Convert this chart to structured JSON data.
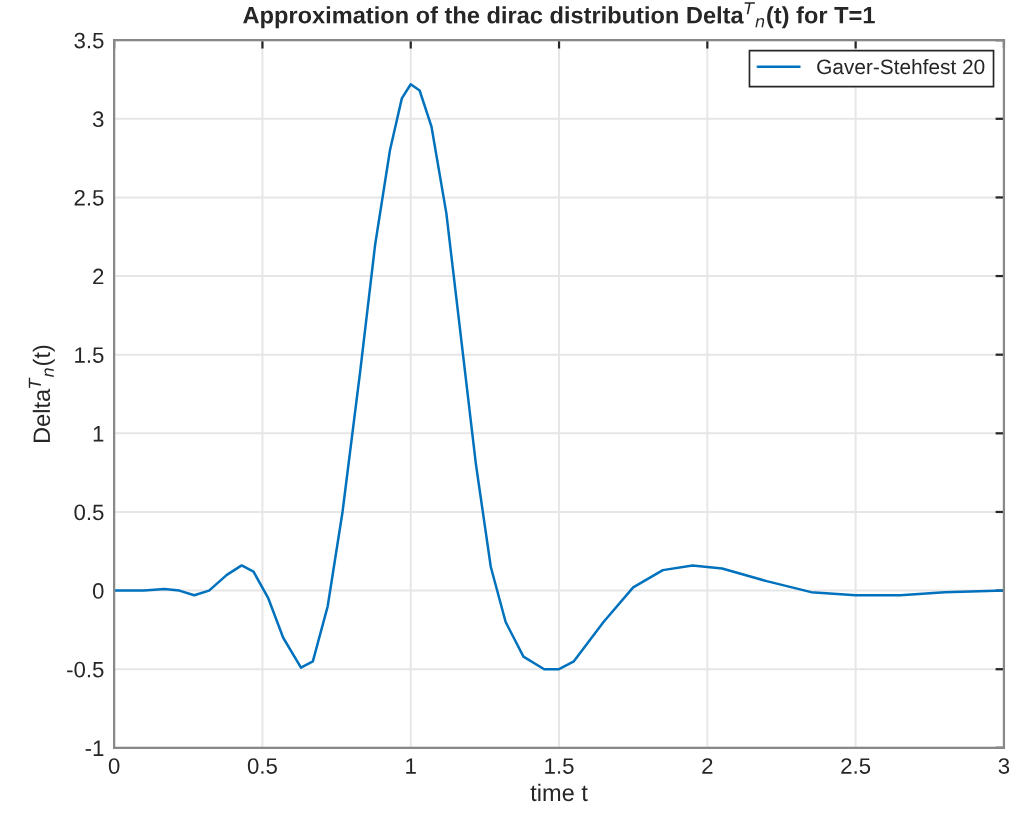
{
  "chart_data": {
    "type": "line",
    "title": "Approximation of the dirac distribution Delta$^{T}$$_{n}$(t) for T=1",
    "xlabel": "time t",
    "ylabel": "Delta$^{T}$$_{n}$(t)",
    "x": [
      0,
      0.1,
      0.17,
      0.22,
      0.27,
      0.32,
      0.38,
      0.43,
      0.47,
      0.52,
      0.57,
      0.63,
      0.67,
      0.72,
      0.77,
      0.83,
      0.88,
      0.93,
      0.97,
      1.0,
      1.03,
      1.07,
      1.12,
      1.17,
      1.22,
      1.27,
      1.32,
      1.38,
      1.45,
      1.5,
      1.55,
      1.65,
      1.75,
      1.85,
      1.95,
      2.05,
      2.2,
      2.35,
      2.5,
      2.65,
      2.8,
      3.0
    ],
    "series": [
      {
        "name": "Gaver-Stehfest 20",
        "color": "#0072bd",
        "values": [
          0,
          0,
          0.01,
          0,
          -0.03,
          0,
          0.1,
          0.16,
          0.12,
          -0.05,
          -0.3,
          -0.49,
          -0.45,
          -0.1,
          0.5,
          1.4,
          2.2,
          2.8,
          3.13,
          3.22,
          3.18,
          2.95,
          2.4,
          1.6,
          0.8,
          0.15,
          -0.2,
          -0.42,
          -0.5,
          -0.5,
          -0.45,
          -0.2,
          0.02,
          0.13,
          0.16,
          0.14,
          0.06,
          -0.01,
          -0.03,
          -0.03,
          -0.01,
          0
        ]
      }
    ],
    "xlim": [
      0,
      3
    ],
    "xticks": [
      0,
      0.5,
      1,
      1.5,
      2,
      2.5,
      3
    ],
    "ylim": [
      -1,
      3.5
    ],
    "yticks": [
      -1,
      -0.5,
      0,
      0.5,
      1,
      1.5,
      2,
      2.5,
      3,
      3.5
    ],
    "grid": true,
    "legend": "top right"
  }
}
